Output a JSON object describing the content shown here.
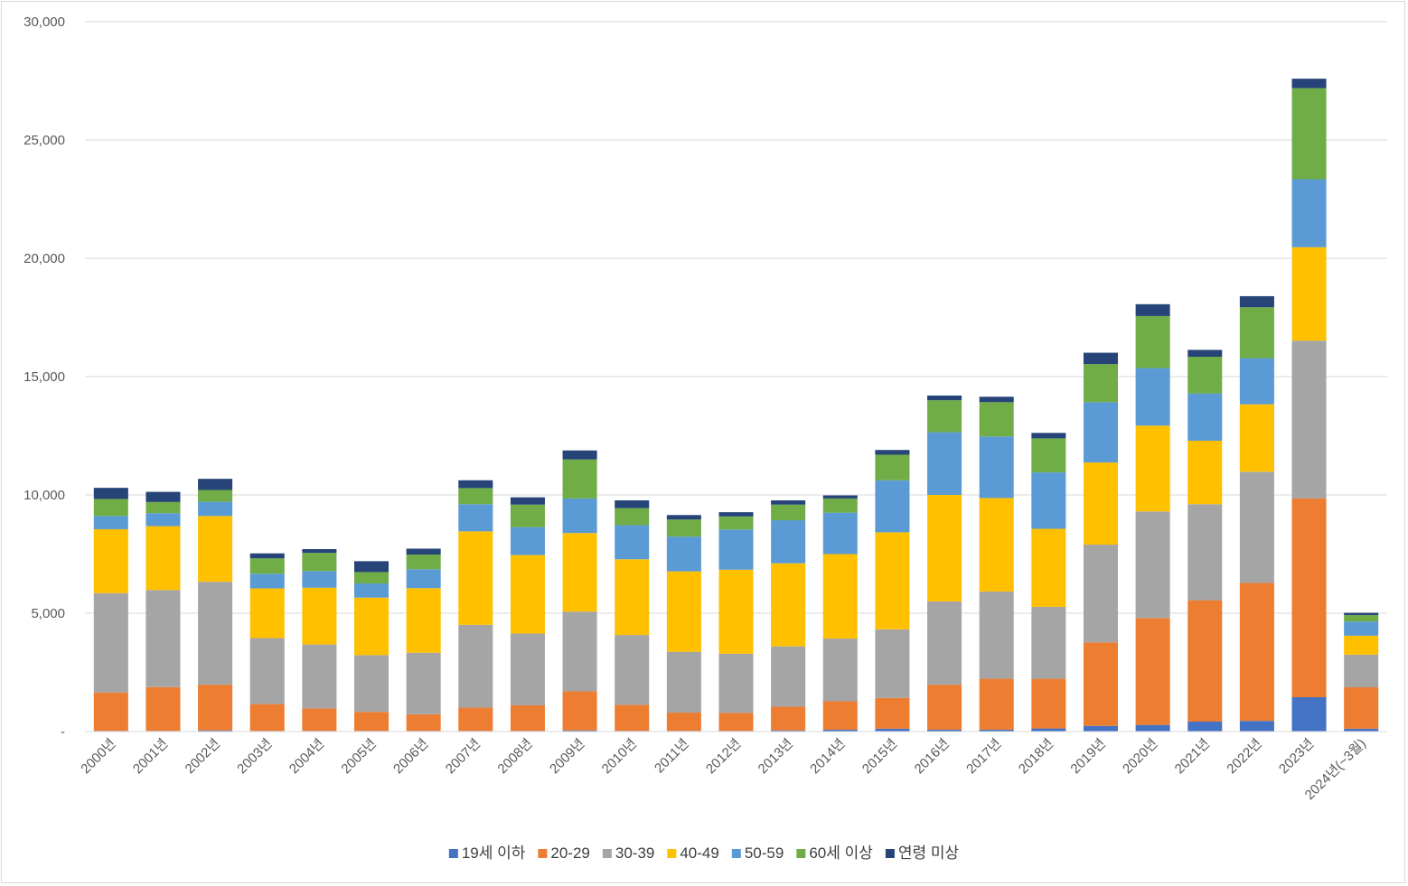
{
  "chart_data": {
    "type": "bar",
    "stacked": true,
    "title": "",
    "xlabel": "",
    "ylabel": "",
    "ylim": [
      0,
      30000
    ],
    "yticks": [
      0,
      5000,
      10000,
      15000,
      20000,
      25000,
      30000
    ],
    "ytick_labels": [
      "-",
      "5,000",
      "10,000",
      "15,000",
      "20,000",
      "25,000",
      "30,000"
    ],
    "grid": "horizontal",
    "legend_position": "bottom",
    "categories": [
      "2000년",
      "2001년",
      "2002년",
      "2003년",
      "2004년",
      "2005년",
      "2006년",
      "2007년",
      "2008년",
      "2009년",
      "2010년",
      "2011년",
      "2012년",
      "2013년",
      "2014년",
      "2015년",
      "2016년",
      "2017년",
      "2018년",
      "2019년",
      "2020년",
      "2021년",
      "2022년",
      "2023년",
      "2024년(~3월)"
    ],
    "series": [
      {
        "name": "19세 이하",
        "color": "#4472C4",
        "values": [
          30,
          30,
          50,
          30,
          30,
          30,
          30,
          30,
          30,
          50,
          30,
          30,
          30,
          50,
          80,
          120,
          80,
          80,
          130,
          240,
          280,
          420,
          450,
          1450,
          120
        ]
      },
      {
        "name": "20-29",
        "color": "#ED7D31",
        "values": [
          1620,
          1850,
          1930,
          1130,
          950,
          800,
          700,
          980,
          1080,
          1650,
          1100,
          770,
          760,
          1000,
          1200,
          1300,
          1900,
          2150,
          2100,
          3530,
          4520,
          5130,
          5830,
          8400,
          1750
        ]
      },
      {
        "name": "30-39",
        "color": "#A5A5A5",
        "values": [
          4200,
          4100,
          4350,
          2790,
          2700,
          2400,
          2600,
          3500,
          3030,
          3370,
          2950,
          2570,
          2500,
          2550,
          2650,
          2900,
          3520,
          3690,
          3040,
          4130,
          4500,
          4060,
          4700,
          6670,
          1380
        ]
      },
      {
        "name": "40-49",
        "color": "#FFC000",
        "values": [
          2700,
          2700,
          2780,
          2100,
          2400,
          2430,
          2730,
          3950,
          3320,
          3320,
          3200,
          3400,
          3550,
          3510,
          3570,
          4100,
          4500,
          3950,
          3300,
          3470,
          3630,
          2680,
          2850,
          3950,
          800
        ]
      },
      {
        "name": "50-59",
        "color": "#5B9BD5",
        "values": [
          560,
          550,
          600,
          620,
          700,
          600,
          800,
          1150,
          1180,
          1460,
          1440,
          1470,
          1700,
          1820,
          1750,
          2200,
          2650,
          2600,
          2380,
          2550,
          2430,
          2000,
          1950,
          2870,
          600
        ]
      },
      {
        "name": "60세 이상",
        "color": "#70AD47",
        "values": [
          720,
          470,
          500,
          650,
          770,
          480,
          620,
          680,
          950,
          1650,
          720,
          720,
          550,
          660,
          600,
          1080,
          1350,
          1450,
          1440,
          1610,
          2200,
          1550,
          2150,
          3850,
          270
        ]
      },
      {
        "name": "연령 미상",
        "color": "#264478",
        "values": [
          470,
          430,
          470,
          210,
          160,
          460,
          250,
          330,
          310,
          380,
          330,
          190,
          180,
          180,
          130,
          200,
          200,
          230,
          230,
          480,
          500,
          290,
          470,
          400,
          100
        ]
      }
    ]
  }
}
